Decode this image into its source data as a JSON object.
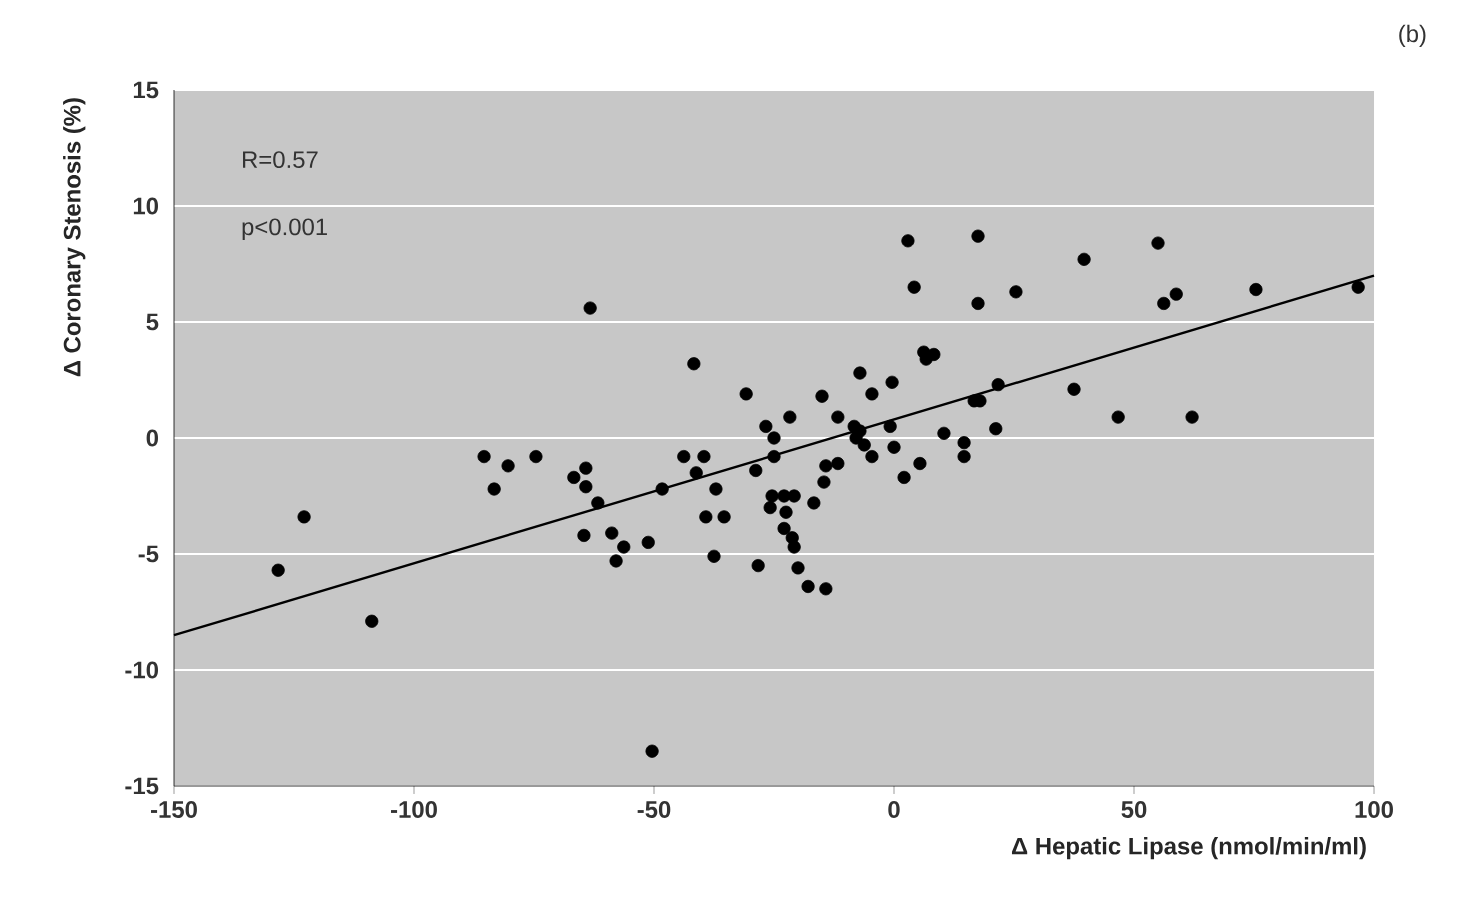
{
  "chart_data": {
    "type": "scatter",
    "xlabel": "Δ Hepatic Lipase (nmol/min/ml)",
    "ylabel": "Δ Coronary Stenosis (%)",
    "annotations": [
      "(b)",
      "R=0.57",
      "p<0.001"
    ],
    "xlim": [
      -150,
      100
    ],
    "xticks": [
      -150,
      -100,
      -50,
      0,
      50,
      100
    ],
    "ylim": [
      -15,
      15
    ],
    "yticks": [
      -15,
      -10,
      -5,
      0,
      5,
      10,
      15
    ],
    "grid": "y",
    "marker": "circle",
    "series": [
      {
        "color": "#000000",
        "x": [
          -128.3,
          -122.9,
          -108.8,
          -85.4,
          -83.3,
          -80.4,
          -74.6,
          -63.3,
          -66.7,
          -64.2,
          -64.2,
          -61.7,
          -64.6,
          -58.8,
          -56.3,
          -57.9,
          -51.2,
          -50.4,
          -48.3,
          -41.7,
          -43.8,
          -39.6,
          -41.2,
          -37.1,
          -39.2,
          -35.4,
          -37.5,
          -30.8,
          -28.8,
          -28.3,
          -26.7,
          -25.0,
          -25.0,
          -21.7,
          -25.4,
          -22.9,
          -20.8,
          -25.8,
          -22.5,
          -22.9,
          -21.2,
          -20.8,
          -20.0,
          -17.9,
          -14.2,
          -16.7,
          -15.0,
          -14.6,
          -14.2,
          -11.7,
          -11.7,
          -8.3,
          -7.9,
          -7.1,
          -6.2,
          -4.6,
          -7.1,
          -4.6,
          -0.4,
          -0.8,
          0.0,
          2.1,
          5.4,
          2.9,
          4.2,
          17.5,
          17.5,
          6.2,
          8.3,
          6.7,
          10.4,
          14.6,
          14.6,
          16.7,
          17.9,
          21.7,
          21.2,
          25.4,
          39.6,
          55.0,
          56.2,
          58.8,
          75.4,
          96.7,
          37.5,
          46.7,
          62.1
        ],
        "values": [
          -5.7,
          -3.4,
          -7.9,
          -0.8,
          -2.2,
          -1.2,
          -0.8,
          5.6,
          -1.7,
          -1.3,
          -2.1,
          -2.8,
          -4.2,
          -4.1,
          -4.7,
          -5.3,
          -4.5,
          -13.5,
          -2.2,
          3.2,
          -0.8,
          -0.8,
          -1.5,
          -2.2,
          -3.4,
          -3.4,
          -5.1,
          1.9,
          -1.4,
          -5.5,
          0.5,
          0.0,
          -0.8,
          0.9,
          -2.5,
          -2.5,
          -2.5,
          -3.0,
          -3.2,
          -3.9,
          -4.3,
          -4.7,
          -5.6,
          -6.4,
          -6.5,
          -2.8,
          1.8,
          -1.9,
          -1.2,
          -1.1,
          0.9,
          0.5,
          0.0,
          0.3,
          -0.3,
          -0.8,
          2.8,
          1.9,
          2.4,
          0.5,
          -0.4,
          -1.7,
          -1.1,
          8.5,
          6.5,
          8.7,
          5.8,
          3.7,
          3.6,
          3.4,
          0.2,
          -0.2,
          -0.8,
          1.6,
          1.6,
          2.3,
          0.4,
          6.3,
          7.7,
          8.4,
          5.8,
          6.2,
          6.4,
          6.5,
          2.1,
          0.9,
          0.9
        ]
      },
      {
        "type": "line",
        "color": "#000000",
        "marker": "none",
        "x": [
          -150,
          100
        ],
        "values": [
          -8.5,
          7.0
        ]
      }
    ]
  }
}
